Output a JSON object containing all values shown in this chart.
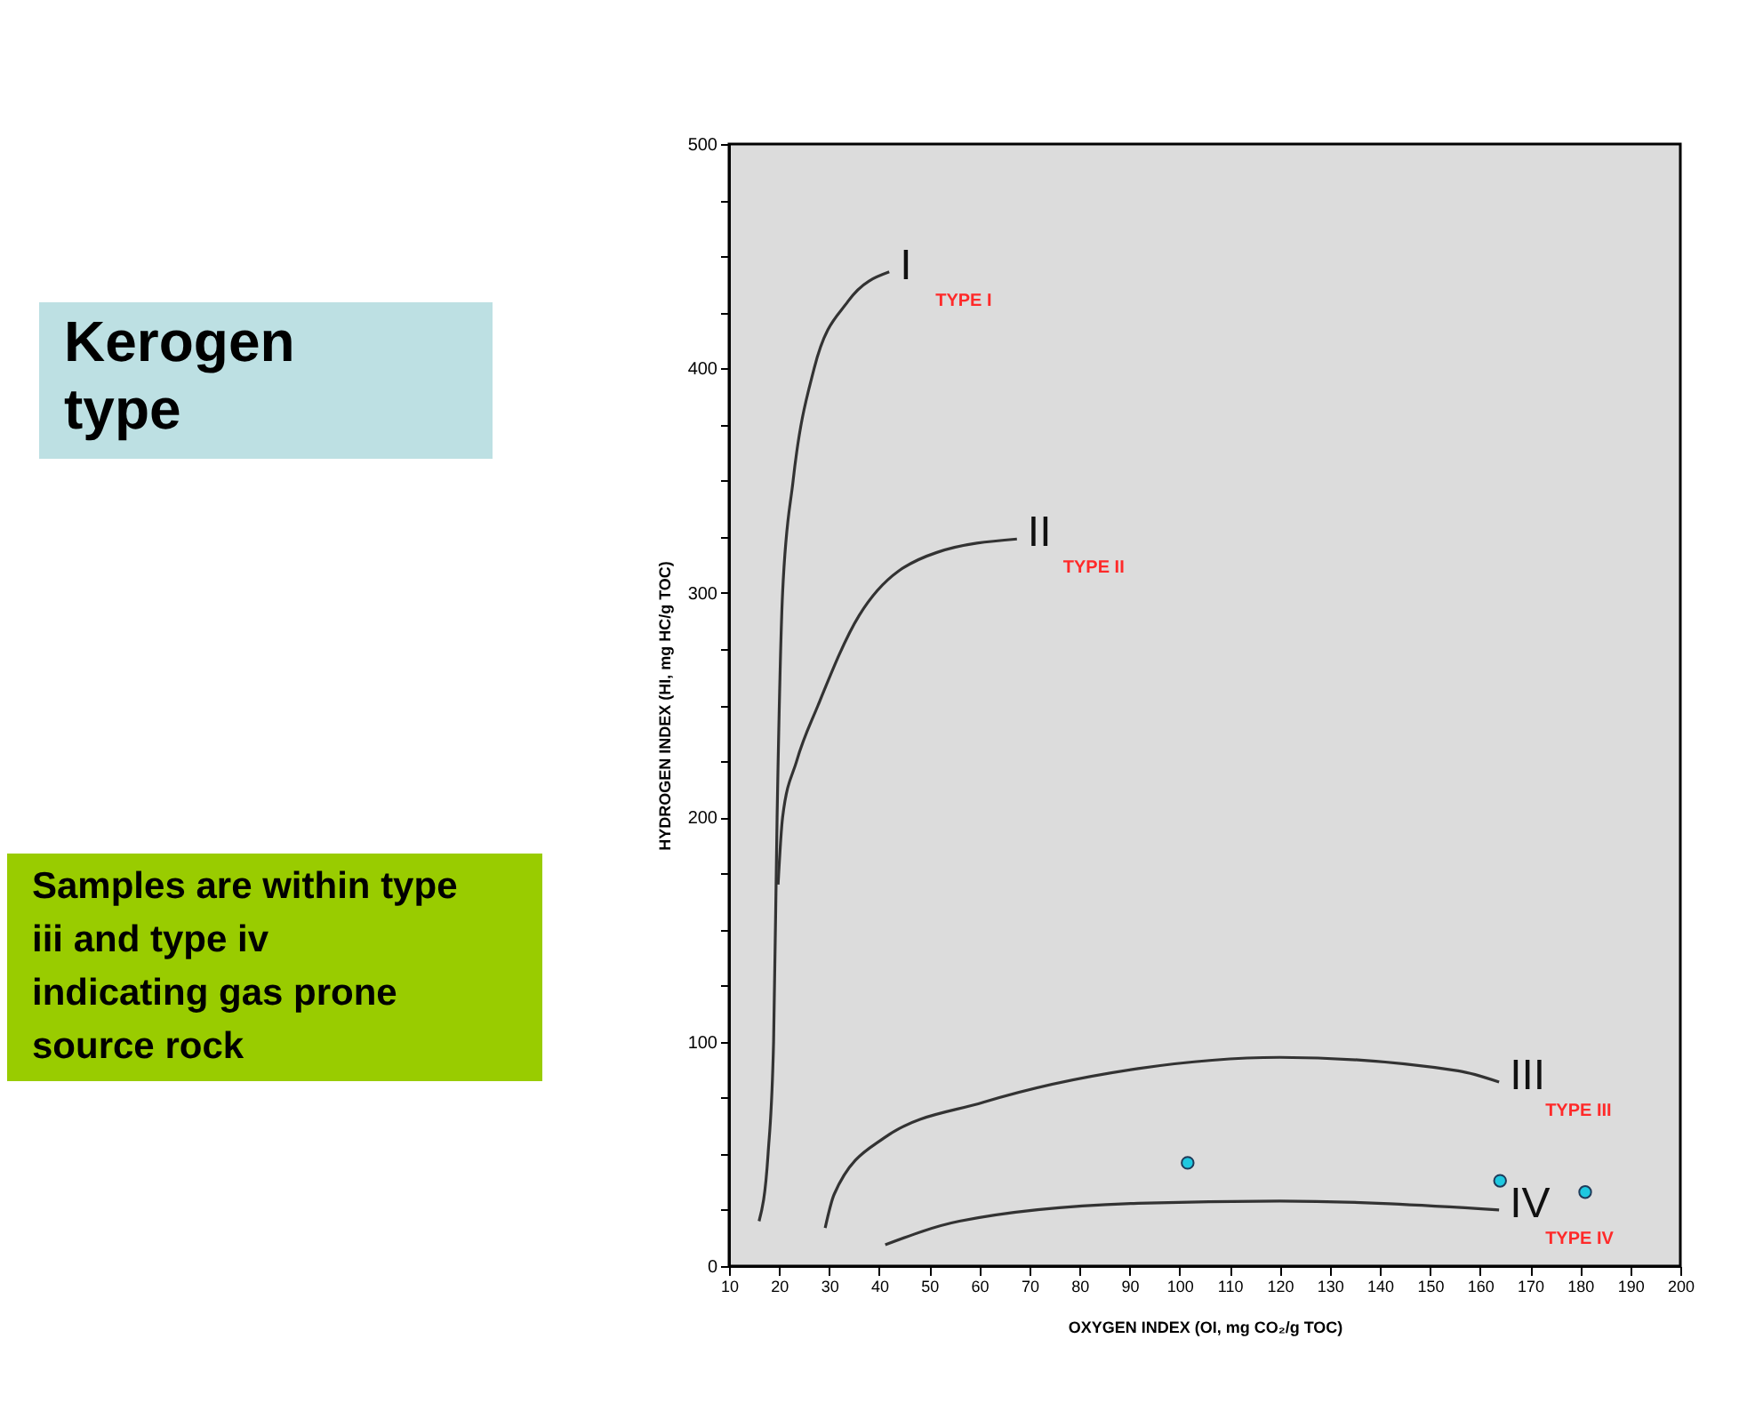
{
  "chart_data": {
    "type": "line",
    "title": "Kerogen type",
    "xlabel": "OXYGEN INDEX (OI, mg CO₂/g TOC)",
    "ylabel": "HYDROGEN INDEX (HI, mg HC/g TOC)",
    "annotations": [
      "Samples are within type iii and type iv indicating gas prone source rock",
      {
        "text": "I",
        "x": 42,
        "y": 443
      },
      {
        "text": "II",
        "x": 67.5,
        "y": 324
      },
      {
        "text": "III",
        "x": 163.8,
        "y": 82
      },
      {
        "text": "IV",
        "x": 163.8,
        "y": 25
      }
    ],
    "series": [
      {
        "name": "TYPE I",
        "color": "#333333",
        "x": [
          16,
          17.8,
          18.9,
          19.6,
          20.7,
          22.8,
          27,
          33.8,
          42
        ],
        "values": [
          20,
          50,
          100,
          200,
          300,
          350,
          400,
          430,
          443
        ]
      },
      {
        "name": "TYPE II",
        "color": "#333333",
        "x": [
          19.8,
          20.7,
          23.5,
          27.8,
          36,
          51.5,
          67.5
        ],
        "values": [
          170,
          200,
          225,
          250,
          290,
          318,
          324
        ]
      },
      {
        "name": "TYPE III",
        "color": "#333333",
        "x": [
          29.2,
          31,
          40.9,
          60.8,
          91.7,
          120,
          155.6,
          163.8
        ],
        "values": [
          17,
          32,
          57,
          73,
          88,
          93,
          87,
          82
        ]
      },
      {
        "name": "TYPE IV",
        "color": "#333333",
        "x": [
          41.2,
          56,
          91.7,
          120,
          163.8
        ],
        "values": [
          9.5,
          20,
          28,
          29,
          25
        ]
      },
      {
        "type": "scatter",
        "color": "#1ec8e0",
        "marker": "circle",
        "x": [
          101.6,
          164,
          181
        ],
        "values": [
          46,
          38,
          33
        ]
      }
    ],
    "xlim": [
      10,
      200
    ],
    "ylim": [
      0,
      500
    ],
    "xticks": [
      10,
      20,
      30,
      40,
      50,
      60,
      70,
      80,
      90,
      100,
      110,
      120,
      130,
      140,
      150,
      160,
      170,
      180,
      190,
      200
    ],
    "yticks": [
      0,
      {
        "value": 25,
        "label": null
      },
      {
        "value": 50,
        "label": null
      },
      {
        "value": 75,
        "label": null
      },
      100,
      {
        "value": 125,
        "label": null
      },
      {
        "value": 150,
        "label": null
      },
      {
        "value": 175,
        "label": null
      },
      200,
      {
        "value": 225,
        "label": null
      },
      {
        "value": 250,
        "label": null
      },
      {
        "value": 275,
        "label": null
      },
      300,
      {
        "value": 325,
        "label": null
      },
      {
        "value": 350,
        "label": null
      },
      {
        "value": 375,
        "label": null
      },
      400,
      {
        "value": 425,
        "label": null
      },
      {
        "value": 450,
        "label": null
      },
      {
        "value": 475,
        "label": null
      },
      500
    ],
    "grid": false,
    "legend": false,
    "line_style": "solid"
  }
}
